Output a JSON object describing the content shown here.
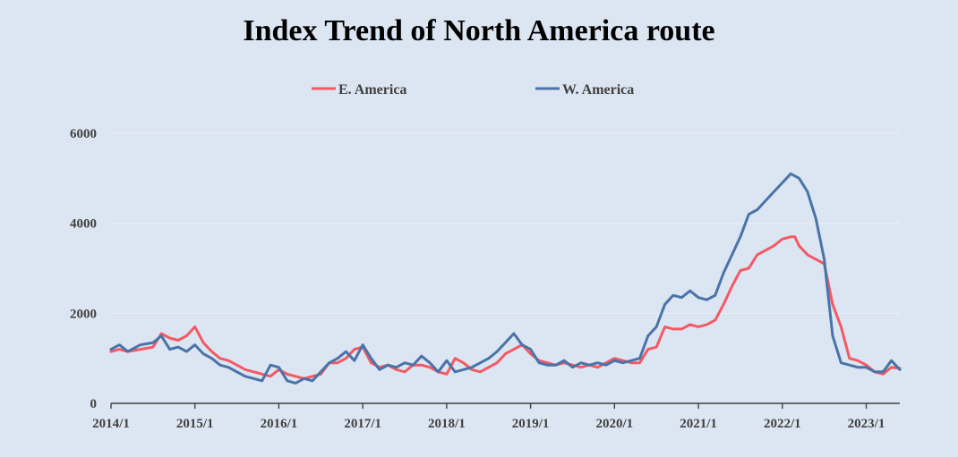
{
  "chart_data": {
    "type": "line",
    "title": "Index Trend of North America  route",
    "xlabel": "",
    "ylabel": "",
    "x_tick_labels": [
      "2014/1",
      "2015/1",
      "2016/1",
      "2017/1",
      "2018/1",
      "2019/1",
      "2020/1",
      "2021/1",
      "2022/1",
      "2023/1"
    ],
    "y_ticks": [
      0,
      2000,
      4000,
      6000
    ],
    "ylim": [
      0,
      6000
    ],
    "xlim": [
      2014.0,
      2023.4
    ],
    "grid": true,
    "legend_position": "top",
    "series": [
      {
        "name": "E. America",
        "color": "#f25a64",
        "x": [
          2014.0,
          2014.1,
          2014.2,
          2014.35,
          2014.5,
          2014.6,
          2014.7,
          2014.8,
          2014.9,
          2015.0,
          2015.1,
          2015.2,
          2015.3,
          2015.4,
          2015.5,
          2015.6,
          2015.7,
          2015.8,
          2015.9,
          2016.0,
          2016.1,
          2016.2,
          2016.3,
          2016.4,
          2016.5,
          2016.6,
          2016.7,
          2016.8,
          2016.9,
          2017.0,
          2017.1,
          2017.2,
          2017.3,
          2017.4,
          2017.5,
          2017.6,
          2017.7,
          2017.8,
          2017.9,
          2018.0,
          2018.1,
          2018.2,
          2018.3,
          2018.4,
          2018.5,
          2018.6,
          2018.7,
          2018.8,
          2018.9,
          2019.0,
          2019.1,
          2019.2,
          2019.3,
          2019.4,
          2019.5,
          2019.6,
          2019.7,
          2019.8,
          2019.9,
          2020.0,
          2020.1,
          2020.2,
          2020.3,
          2020.4,
          2020.5,
          2020.6,
          2020.7,
          2020.8,
          2020.9,
          2021.0,
          2021.1,
          2021.2,
          2021.3,
          2021.4,
          2021.5,
          2021.6,
          2021.7,
          2021.8,
          2021.9,
          2022.0,
          2022.1,
          2022.15,
          2022.2,
          2022.3,
          2022.4,
          2022.5,
          2022.6,
          2022.7,
          2022.8,
          2022.9,
          2023.0,
          2023.1,
          2023.2,
          2023.3,
          2023.4
        ],
        "values": [
          1150,
          1200,
          1150,
          1200,
          1250,
          1550,
          1450,
          1400,
          1500,
          1700,
          1350,
          1150,
          1000,
          950,
          850,
          750,
          700,
          650,
          600,
          750,
          650,
          600,
          550,
          600,
          650,
          900,
          900,
          1000,
          1200,
          1250,
          900,
          800,
          850,
          750,
          700,
          850,
          850,
          800,
          700,
          650,
          1000,
          900,
          750,
          700,
          800,
          900,
          1100,
          1200,
          1300,
          1100,
          950,
          900,
          850,
          900,
          850,
          800,
          850,
          800,
          900,
          1000,
          950,
          900,
          900,
          1200,
          1250,
          1700,
          1650,
          1650,
          1750,
          1700,
          1750,
          1850,
          2200,
          2600,
          2950,
          3000,
          3300,
          3400,
          3500,
          3650,
          3700,
          3700,
          3500,
          3300,
          3200,
          3100,
          2200,
          1700,
          1000,
          950,
          850,
          700,
          650,
          800,
          780
        ]
      },
      {
        "name": "W. America",
        "color": "#4a73a8",
        "x": [
          2014.0,
          2014.1,
          2014.2,
          2014.35,
          2014.5,
          2014.6,
          2014.7,
          2014.8,
          2014.9,
          2015.0,
          2015.1,
          2015.2,
          2015.3,
          2015.4,
          2015.5,
          2015.6,
          2015.7,
          2015.8,
          2015.9,
          2016.0,
          2016.1,
          2016.2,
          2016.3,
          2016.4,
          2016.5,
          2016.6,
          2016.7,
          2016.8,
          2016.9,
          2017.0,
          2017.1,
          2017.2,
          2017.3,
          2017.4,
          2017.5,
          2017.6,
          2017.7,
          2017.8,
          2017.9,
          2018.0,
          2018.1,
          2018.2,
          2018.3,
          2018.4,
          2018.5,
          2018.6,
          2018.7,
          2018.8,
          2018.9,
          2019.0,
          2019.1,
          2019.2,
          2019.3,
          2019.4,
          2019.5,
          2019.6,
          2019.7,
          2019.8,
          2019.9,
          2020.0,
          2020.1,
          2020.2,
          2020.3,
          2020.4,
          2020.5,
          2020.6,
          2020.7,
          2020.8,
          2020.9,
          2021.0,
          2021.1,
          2021.2,
          2021.3,
          2021.4,
          2021.5,
          2021.6,
          2021.7,
          2021.8,
          2021.9,
          2022.0,
          2022.1,
          2022.15,
          2022.2,
          2022.3,
          2022.4,
          2022.5,
          2022.6,
          2022.7,
          2022.8,
          2022.9,
          2023.0,
          2023.1,
          2023.2,
          2023.3,
          2023.4
        ],
        "values": [
          1200,
          1300,
          1150,
          1300,
          1350,
          1500,
          1200,
          1250,
          1150,
          1300,
          1100,
          1000,
          850,
          800,
          700,
          600,
          550,
          500,
          850,
          800,
          500,
          450,
          550,
          500,
          700,
          900,
          1000,
          1150,
          950,
          1300,
          1000,
          750,
          850,
          800,
          900,
          850,
          1050,
          900,
          700,
          950,
          700,
          750,
          800,
          900,
          1000,
          1150,
          1350,
          1550,
          1300,
          1200,
          900,
          850,
          850,
          950,
          800,
          900,
          850,
          900,
          850,
          950,
          900,
          950,
          1000,
          1500,
          1700,
          2200,
          2400,
          2350,
          2500,
          2350,
          2300,
          2400,
          2900,
          3300,
          3700,
          4200,
          4300,
          4500,
          4700,
          4900,
          5100,
          5050,
          5000,
          4700,
          4100,
          3200,
          1500,
          900,
          850,
          800,
          800,
          700,
          700,
          950,
          750
        ]
      }
    ]
  }
}
